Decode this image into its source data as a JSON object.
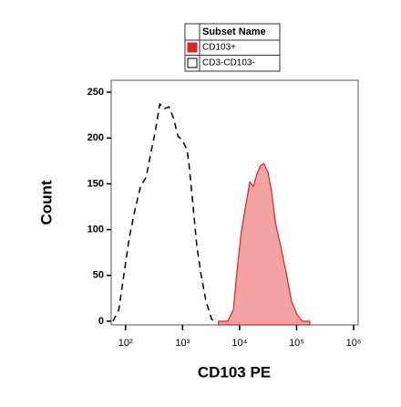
{
  "chart_data": {
    "type": "histogram",
    "x_label": "CD103 PE",
    "y_label": "Count",
    "legend_title": "Subset Name",
    "xscale": "log",
    "xlim": [
      56,
      1200000
    ],
    "xticks": [
      {
        "value": 100,
        "label": "10²"
      },
      {
        "value": 1000,
        "label": "10³"
      },
      {
        "value": 10000,
        "label": "10⁴"
      },
      {
        "value": 100000,
        "label": "10⁵"
      },
      {
        "value": 1000000,
        "label": "10⁶"
      }
    ],
    "ylim": [
      -4,
      263
    ],
    "yticks": [
      0,
      50,
      100,
      150,
      200,
      250
    ],
    "series": [
      {
        "name": "CD103+",
        "color": "#e02020",
        "fill": "#f4a3a3",
        "style": "solid",
        "x": [
          4270,
          6170,
          7760,
          8910,
          10700,
          12900,
          15100,
          17400,
          20400,
          23400,
          26900,
          31600,
          36300,
          42700,
          52500,
          66100,
          81300,
          102000,
          126000,
          170000
        ],
        "values": [
          0,
          0,
          12,
          52,
          97,
          127,
          152,
          147,
          162,
          170,
          172,
          162,
          142,
          107,
          82,
          52,
          22,
          7,
          0,
          0
        ]
      },
      {
        "name": "CD3-CD103-",
        "color": "#000000",
        "fill": "none",
        "style": "dashed",
        "x": [
          60,
          76,
          94,
          117,
          147,
          183,
          229,
          275,
          331,
          398,
          479,
          575,
          692,
          832,
          1000,
          1200,
          1320,
          1550,
          1780,
          2090,
          2570,
          3240,
          3720
        ],
        "values": [
          0,
          12,
          52,
          92,
          122,
          147,
          157,
          182,
          207,
          237,
          232,
          234,
          222,
          202,
          197,
          187,
          167,
          122,
          82,
          52,
          22,
          2,
          0
        ]
      }
    ]
  }
}
